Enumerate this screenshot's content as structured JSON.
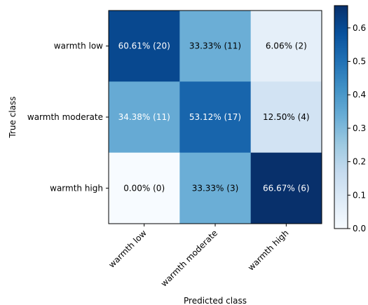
{
  "chart_data": {
    "type": "heatmap",
    "title": "",
    "xlabel": "Predicted class",
    "ylabel": "True class",
    "x_categories": [
      "warmth low",
      "warmth moderate",
      "warmth high"
    ],
    "y_categories": [
      "warmth low",
      "warmth moderate",
      "warmth high"
    ],
    "values": [
      [
        0.6061,
        0.3333,
        0.0606
      ],
      [
        0.3438,
        0.5312,
        0.125
      ],
      [
        0.0,
        0.3333,
        0.6667
      ]
    ],
    "cell_labels": [
      [
        "60.61% (20)",
        "33.33% (11)",
        "6.06% (2)"
      ],
      [
        "34.38% (11)",
        "53.12% (17)",
        "12.50% (4)"
      ],
      [
        "0.00% (0)",
        "33.33% (3)",
        "66.67% (6)"
      ]
    ],
    "colormap": "Blues",
    "vmin": 0,
    "vmax": 0.6667,
    "colorbar_ticks": [
      "0.0",
      "0.1",
      "0.2",
      "0.3",
      "0.4",
      "0.5",
      "0.6"
    ],
    "colorbar_tick_values": [
      0,
      0.1,
      0.2,
      0.3,
      0.4,
      0.5,
      0.6
    ]
  }
}
